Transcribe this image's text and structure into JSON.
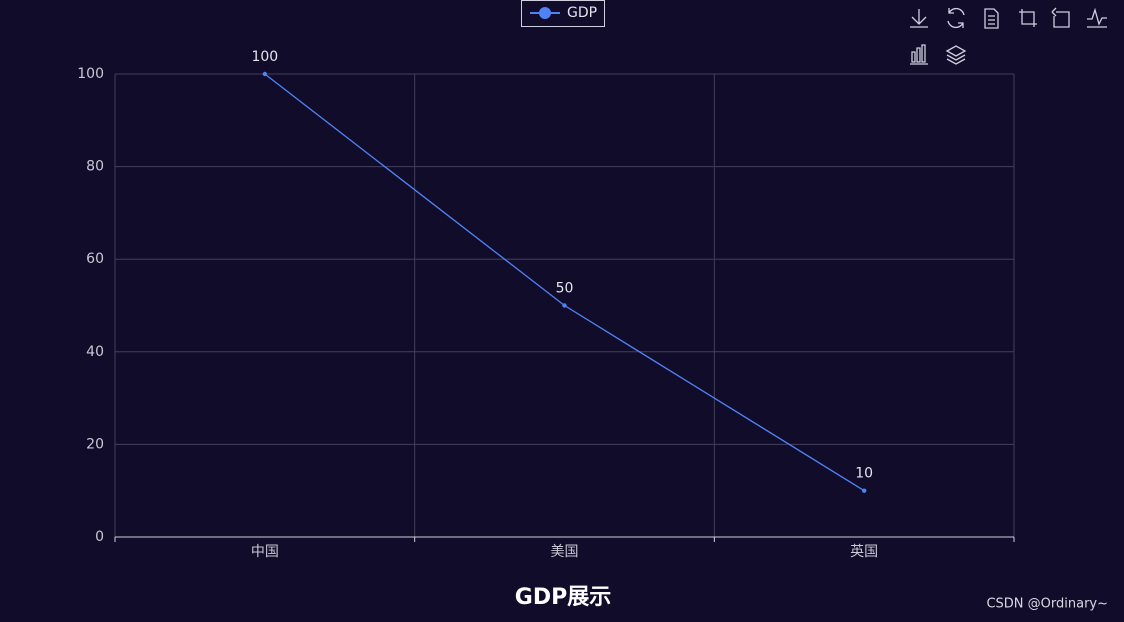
{
  "chart_data": {
    "type": "line",
    "title": "GDP展示",
    "categories": [
      "中国",
      "美国",
      "英国"
    ],
    "series": [
      {
        "name": "GDP",
        "color": "#4f83f5",
        "values": [
          100,
          50,
          10
        ]
      }
    ],
    "ylim": [
      0,
      100
    ],
    "yticks": [
      0,
      20,
      40,
      60,
      80,
      100
    ],
    "grid": true,
    "legend": "top",
    "watermark": "CSDN @Ordinary~"
  }
}
